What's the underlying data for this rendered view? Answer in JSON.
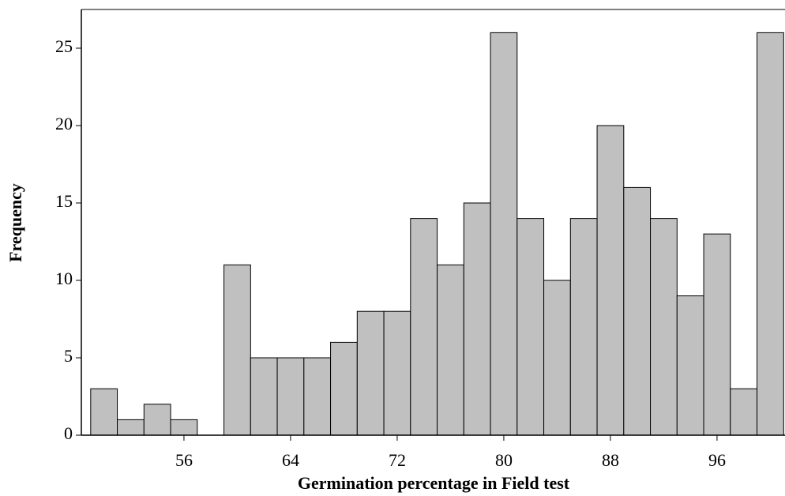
{
  "chart_data": {
    "type": "histogram",
    "xlabel": "Germination percentage in Field test",
    "ylabel": "Frequency",
    "bins": [
      49,
      51,
      53,
      55,
      57,
      59,
      61,
      63,
      65,
      67,
      69,
      71,
      73,
      75,
      77,
      79,
      81,
      83,
      85,
      87,
      89,
      91,
      93,
      95,
      97,
      99,
      101
    ],
    "values": [
      3,
      1,
      2,
      1,
      0,
      11,
      5,
      5,
      5,
      6,
      8,
      8,
      14,
      11,
      15,
      26,
      14,
      10,
      14,
      20,
      16,
      14,
      9,
      13,
      3,
      26
    ],
    "color": "#c0c0c0",
    "xlim": [
      48.3,
      101.1
    ],
    "ylim": [
      0,
      27.5
    ],
    "xticks": [
      56,
      64,
      72,
      80,
      88,
      96
    ],
    "yticks": [
      0,
      5,
      10,
      15,
      20,
      25
    ]
  }
}
